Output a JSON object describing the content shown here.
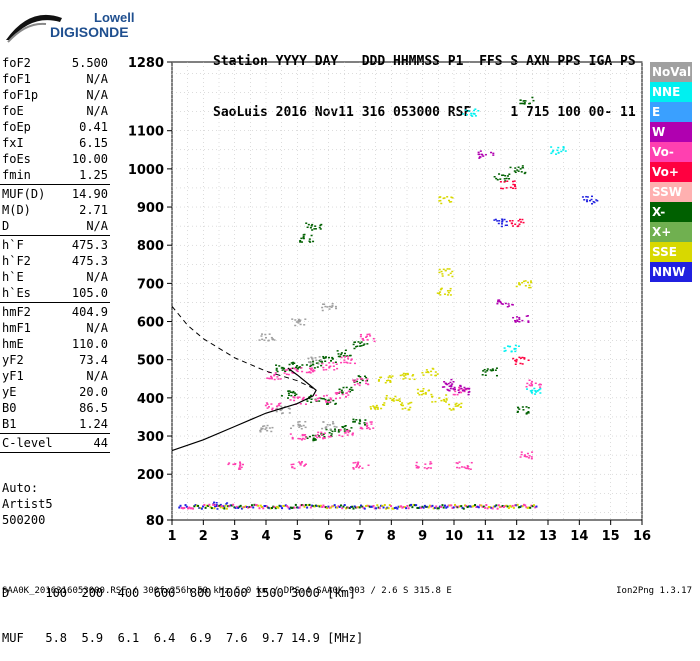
{
  "logo": {
    "line1": "Lowell",
    "line2": "DIGISONDE"
  },
  "header": {
    "line1": "Station YYYY DAY   DDD HHMMSS P1  FFS S AXN PPS IGA PS",
    "line2": "SaoLuis 2016 Nov11 316 053000 RSF     1 715 100 00- 11"
  },
  "params": [
    {
      "k": "foF2",
      "v": "5.500"
    },
    {
      "k": "foF1",
      "v": "N/A"
    },
    {
      "k": "foF1p",
      "v": "N/A"
    },
    {
      "k": "foE",
      "v": "N/A"
    },
    {
      "k": "foEp",
      "v": "0.41"
    },
    {
      "k": "fxI",
      "v": "6.15"
    },
    {
      "k": "foEs",
      "v": "10.00"
    },
    {
      "k": "fmin",
      "v": "1.25"
    },
    {
      "sep": true
    },
    {
      "k": "MUF(D)",
      "v": "14.90"
    },
    {
      "k": "M(D)",
      "v": "2.71"
    },
    {
      "k": "D",
      "v": "N/A"
    },
    {
      "sep": true
    },
    {
      "k": "h`F",
      "v": "475.3"
    },
    {
      "k": "h`F2",
      "v": "475.3"
    },
    {
      "k": "h`E",
      "v": "N/A"
    },
    {
      "k": "h`Es",
      "v": "105.0"
    },
    {
      "sep": true
    },
    {
      "k": "hmF2",
      "v": "404.9"
    },
    {
      "k": "hmF1",
      "v": "N/A"
    },
    {
      "k": "hmE",
      "v": "110.0"
    },
    {
      "k": "yF2",
      "v": "73.4"
    },
    {
      "k": "yF1",
      "v": "N/A"
    },
    {
      "k": "yE",
      "v": "20.0"
    },
    {
      "k": "B0",
      "v": "86.5"
    },
    {
      "k": "B1",
      "v": "1.24"
    },
    {
      "sep": true
    },
    {
      "k": "C-level",
      "v": "44"
    },
    {
      "sep": true
    }
  ],
  "auto": {
    "line1": "Auto:",
    "line2": "Artist5",
    "line3": "500200"
  },
  "legend": [
    {
      "label": "NoVal",
      "color": "#a0a0a0"
    },
    {
      "label": "NNE",
      "color": "#00f0f0"
    },
    {
      "label": "E",
      "color": "#3aa0ff"
    },
    {
      "label": "W",
      "color": "#b000b0"
    },
    {
      "label": "Vo-",
      "color": "#ff40b0"
    },
    {
      "label": "Vo+",
      "color": "#ff0040"
    },
    {
      "label": "SSW",
      "color": "#ffb0b0"
    },
    {
      "label": "X-",
      "color": "#006000"
    },
    {
      "label": "X+",
      "color": "#70b050"
    },
    {
      "label": "SSE",
      "color": "#d8d800"
    },
    {
      "label": "NNW",
      "color": "#2020e0"
    }
  ],
  "muf": {
    "line1": "D     100  200  400  600  800 1000 1500 3000 [km]",
    "line2": "MUF   5.8  5.9  6.1  6.4  6.9  7.6  9.7 14.9 [MHz]"
  },
  "footer": "SAA0K_2016316053000.RSF / 300fx256h 50 kHz 5.0 km / DPS-4 SAA0K 903 / 2.6 S 315.8 E",
  "version": "Ion2Png 1.3.17",
  "chart_data": {
    "type": "scatter",
    "xlabel": "",
    "ylabel": "",
    "xlim": [
      1,
      16
    ],
    "ylim": [
      80,
      1280
    ],
    "x_ticks": [
      1,
      2,
      3,
      4,
      5,
      6,
      7,
      8,
      9,
      10,
      11,
      12,
      13,
      14,
      15,
      16
    ],
    "y_ticks": [
      80,
      200,
      300,
      400,
      500,
      600,
      700,
      800,
      900,
      1000,
      1100,
      1280
    ],
    "grid": true,
    "series": [
      {
        "name": "X-",
        "color": "#006000",
        "points": [
          [
            4.5,
            480
          ],
          [
            5,
            485
          ],
          [
            5.5,
            490
          ],
          [
            6,
            500
          ],
          [
            6.5,
            520
          ],
          [
            7,
            540
          ],
          [
            4.7,
            410
          ],
          [
            5.5,
            400
          ],
          [
            6,
            395
          ],
          [
            6.5,
            420
          ],
          [
            7,
            450
          ],
          [
            5.5,
            300
          ],
          [
            6,
            310
          ],
          [
            6.5,
            320
          ],
          [
            7,
            340
          ],
          [
            5.5,
            850
          ],
          [
            5.3,
            820
          ],
          [
            11.5,
            980
          ],
          [
            12,
            1000
          ],
          [
            12.3,
            1180
          ],
          [
            11.1,
            470
          ],
          [
            12.2,
            370
          ]
        ]
      },
      {
        "name": "Vo-",
        "color": "#ff40b0",
        "points": [
          [
            4.2,
            460
          ],
          [
            4.8,
            470
          ],
          [
            5.3,
            475
          ],
          [
            6,
            485
          ],
          [
            6.6,
            500
          ],
          [
            7.2,
            560
          ],
          [
            4.2,
            380
          ],
          [
            5,
            395
          ],
          [
            5.8,
            400
          ],
          [
            6.4,
            410
          ],
          [
            7,
            445
          ],
          [
            5,
            300
          ],
          [
            5.8,
            305
          ],
          [
            6.5,
            310
          ],
          [
            7.2,
            330
          ],
          [
            3,
            225
          ],
          [
            5,
            225
          ],
          [
            7,
            225
          ],
          [
            9,
            225
          ],
          [
            10.3,
            225
          ],
          [
            10.2,
            420
          ],
          [
            12.5,
            440
          ],
          [
            12.3,
            250
          ]
        ]
      },
      {
        "name": "SSE",
        "color": "#d8d800",
        "points": [
          [
            7.5,
            380
          ],
          [
            8,
            400
          ],
          [
            8.5,
            380
          ],
          [
            9,
            420
          ],
          [
            9.5,
            400
          ],
          [
            10,
            380
          ],
          [
            7.8,
            450
          ],
          [
            8.5,
            460
          ],
          [
            9.2,
            470
          ],
          [
            9.7,
            920
          ],
          [
            9.7,
            730
          ],
          [
            9.7,
            680
          ],
          [
            12.2,
            700
          ]
        ]
      },
      {
        "name": "W",
        "color": "#b000b0",
        "points": [
          [
            9.8,
            440
          ],
          [
            10,
            430
          ],
          [
            10.3,
            420
          ],
          [
            11,
            1040
          ],
          [
            11.6,
            650
          ],
          [
            12.1,
            610
          ]
        ]
      },
      {
        "name": "NNE",
        "color": "#00f0f0",
        "points": [
          [
            10.5,
            1150
          ],
          [
            11.8,
            530
          ],
          [
            12.5,
            420
          ],
          [
            13.3,
            1050
          ]
        ]
      },
      {
        "name": "Vo+",
        "color": "#ff0040",
        "points": [
          [
            11.7,
            960
          ],
          [
            12,
            860
          ],
          [
            12.1,
            500
          ]
        ]
      },
      {
        "name": "NNW",
        "color": "#2020e0",
        "points": [
          [
            11.5,
            860
          ],
          [
            14.3,
            920
          ],
          [
            2.5,
            120
          ]
        ]
      },
      {
        "name": "NoVal",
        "color": "#a0a0a0",
        "points": [
          [
            4,
            320
          ],
          [
            5,
            330
          ],
          [
            6,
            330
          ],
          [
            4.5,
            370
          ],
          [
            5.5,
            500
          ],
          [
            4,
            560
          ],
          [
            5,
            600
          ],
          [
            6,
            640
          ]
        ]
      }
    ],
    "trace_band_120": {
      "color_mix": [
        "#ff40b0",
        "#006000",
        "#2020e0",
        "#d8d800"
      ],
      "x_range": [
        1.2,
        12.6
      ],
      "height": 120
    },
    "profile_solid": [
      [
        1,
        262
      ],
      [
        2,
        290
      ],
      [
        3,
        325
      ],
      [
        4,
        360
      ],
      [
        5,
        385
      ],
      [
        5.5,
        405
      ],
      [
        5.6,
        420
      ],
      [
        5.3,
        440
      ],
      [
        5,
        460
      ],
      [
        4.7,
        478
      ]
    ],
    "profile_dashed": [
      [
        1,
        640
      ],
      [
        1.5,
        590
      ],
      [
        2,
        555
      ],
      [
        3,
        505
      ],
      [
        4,
        470
      ],
      [
        5,
        445
      ],
      [
        5.5,
        425
      ]
    ]
  }
}
